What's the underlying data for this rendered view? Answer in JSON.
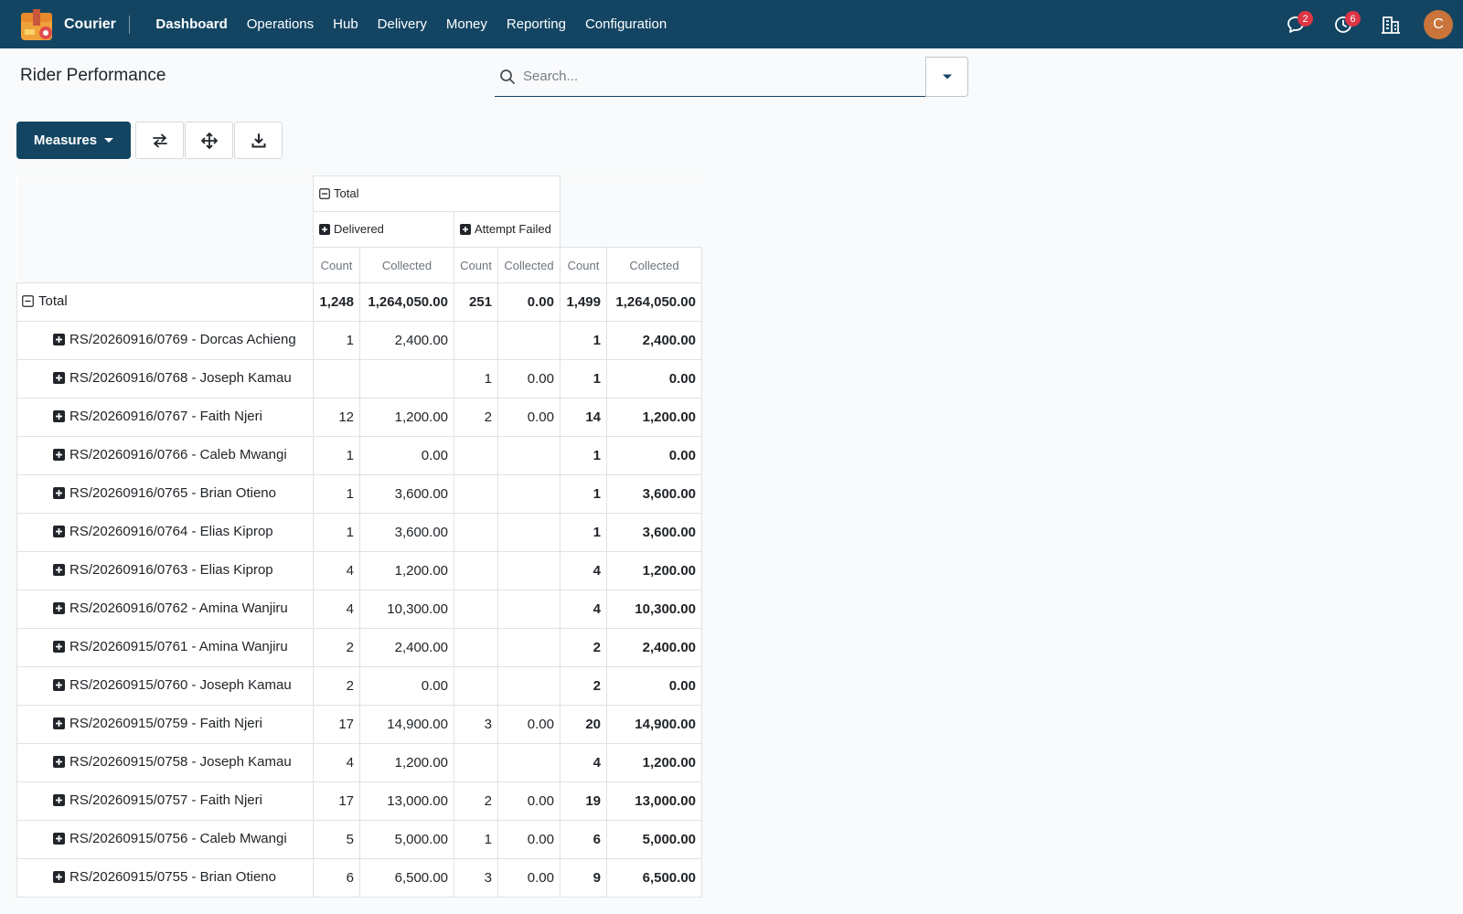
{
  "navbar": {
    "app_name": "Courier",
    "menu": [
      "Dashboard",
      "Operations",
      "Hub",
      "Delivery",
      "Money",
      "Reporting",
      "Configuration"
    ],
    "active_menu": "Dashboard",
    "messages_badge": "2",
    "activities_badge": "6",
    "avatar_initial": "C",
    "colors": {
      "navbar": "#134563",
      "badge": "#dc3545",
      "avatar": "#c8743a"
    }
  },
  "control": {
    "page_title": "Rider Performance",
    "search_placeholder": "Search...",
    "measures_label": "Measures"
  },
  "pivot": {
    "col_group_total": "Total",
    "col_groups": [
      "Delivered",
      "Attempt Failed"
    ],
    "measures": [
      "Count",
      "Collected"
    ],
    "total_row": {
      "label": "Total",
      "values": [
        "1,248",
        "1,264,050.00",
        "251",
        "0.00",
        "1,499",
        "1,264,050.00"
      ]
    },
    "rows": [
      {
        "label": "RS/20260916/0769 - Dorcas Achieng",
        "values": [
          "1",
          "2,400.00",
          "",
          "",
          "1",
          "2,400.00"
        ]
      },
      {
        "label": "RS/20260916/0768 - Joseph Kamau",
        "values": [
          "",
          "",
          "1",
          "0.00",
          "1",
          "0.00"
        ]
      },
      {
        "label": "RS/20260916/0767 - Faith Njeri",
        "values": [
          "12",
          "1,200.00",
          "2",
          "0.00",
          "14",
          "1,200.00"
        ]
      },
      {
        "label": "RS/20260916/0766 - Caleb Mwangi",
        "values": [
          "1",
          "0.00",
          "",
          "",
          "1",
          "0.00"
        ]
      },
      {
        "label": "RS/20260916/0765 - Brian Otieno",
        "values": [
          "1",
          "3,600.00",
          "",
          "",
          "1",
          "3,600.00"
        ]
      },
      {
        "label": "RS/20260916/0764 - Elias Kiprop",
        "values": [
          "1",
          "3,600.00",
          "",
          "",
          "1",
          "3,600.00"
        ]
      },
      {
        "label": "RS/20260916/0763 - Elias Kiprop",
        "values": [
          "4",
          "1,200.00",
          "",
          "",
          "4",
          "1,200.00"
        ]
      },
      {
        "label": "RS/20260916/0762 - Amina Wanjiru",
        "values": [
          "4",
          "10,300.00",
          "",
          "",
          "4",
          "10,300.00"
        ]
      },
      {
        "label": "RS/20260915/0761 - Amina Wanjiru",
        "values": [
          "2",
          "2,400.00",
          "",
          "",
          "2",
          "2,400.00"
        ]
      },
      {
        "label": "RS/20260915/0760 - Joseph Kamau",
        "values": [
          "2",
          "0.00",
          "",
          "",
          "2",
          "0.00"
        ]
      },
      {
        "label": "RS/20260915/0759 - Faith Njeri",
        "values": [
          "17",
          "14,900.00",
          "3",
          "0.00",
          "20",
          "14,900.00"
        ]
      },
      {
        "label": "RS/20260915/0758 - Joseph Kamau",
        "values": [
          "4",
          "1,200.00",
          "",
          "",
          "4",
          "1,200.00"
        ]
      },
      {
        "label": "RS/20260915/0757 - Faith Njeri",
        "values": [
          "17",
          "13,000.00",
          "2",
          "0.00",
          "19",
          "13,000.00"
        ]
      },
      {
        "label": "RS/20260915/0756 - Caleb Mwangi",
        "values": [
          "5",
          "5,000.00",
          "1",
          "0.00",
          "6",
          "5,000.00"
        ]
      },
      {
        "label": "RS/20260915/0755 - Brian Otieno",
        "values": [
          "6",
          "6,500.00",
          "3",
          "0.00",
          "9",
          "6,500.00"
        ]
      }
    ]
  }
}
